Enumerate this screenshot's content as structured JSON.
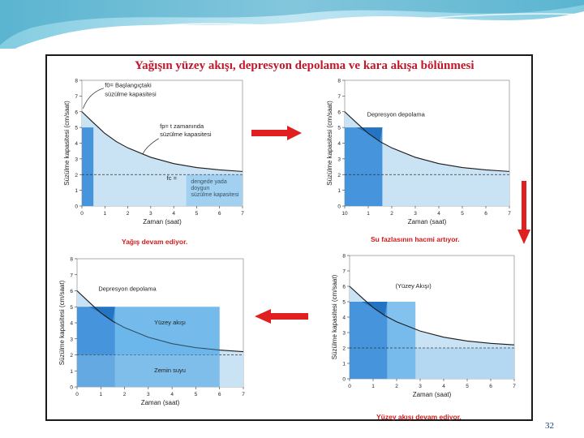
{
  "title": "Yağışın yüzey akışı, depresyon depolama ve kara akışa bölünmesi",
  "page_number": "32",
  "axes": {
    "xlabel": "Zaman (saat)",
    "ylabel": "Süzülme kapasitesi (cm/saat)",
    "xticks": [
      "0",
      "1",
      "2",
      "3",
      "4",
      "5",
      "6",
      "7"
    ],
    "xticks_panel2": [
      "10",
      "1",
      "2",
      "3",
      "4",
      "5",
      "6",
      "7"
    ],
    "yticks": [
      "0",
      "1",
      "2",
      "3",
      "4",
      "5",
      "6",
      "7",
      "8"
    ],
    "xlim": [
      0,
      7
    ],
    "ylim": [
      0,
      8
    ]
  },
  "colors": {
    "rain_dark": "#2f86d6",
    "light_blue": "#c9e2f4",
    "mid_blue": "#5aaee9",
    "curve": "#1a1a1a",
    "caption": "#d01a1a",
    "arrow": "#e02020"
  },
  "chart_data": [
    {
      "type": "area",
      "curve_x": [
        0,
        0.5,
        1,
        1.5,
        2,
        3,
        4,
        5,
        6,
        7
      ],
      "curve_y": [
        6.0,
        5.3,
        4.62,
        4.1,
        3.7,
        3.1,
        2.7,
        2.45,
        2.3,
        2.2
      ],
      "fc": 2.0,
      "rain": {
        "x": [
          0,
          0.5
        ],
        "y": 5
      },
      "annotations": {
        "f0": "f0= Başlangıçtaki süzülme kapasitesi",
        "fp": "fp= t zamanında süzülme kapasitesi",
        "fc": "fc =",
        "fc_desc": "dengede yada doygun süzülme kapasitesi"
      },
      "caption": "Yağış devam ediyor."
    },
    {
      "type": "area",
      "fc": 2.0,
      "rain": {
        "x": [
          0,
          1.6
        ],
        "y": 5
      },
      "annotations": {
        "depression": "Depresyon depolama"
      },
      "caption": "Su fazlasının hacmi artıyor."
    },
    {
      "type": "area",
      "fc": 2.0,
      "rain": {
        "x": [
          0,
          2.8
        ],
        "y": 5
      },
      "annotations": {
        "runoff": "(Yüzey Akışı)"
      },
      "caption": "Yüzey akışı devam ediyor."
    },
    {
      "type": "area",
      "fc": 2.0,
      "rain": {
        "x": [
          0,
          6
        ],
        "y": 5
      },
      "annotations": {
        "depression": "Depresyon depolama",
        "runoff": "Yüzey akışı",
        "groundwater": "Zemin suyu"
      },
      "caption": ""
    }
  ]
}
